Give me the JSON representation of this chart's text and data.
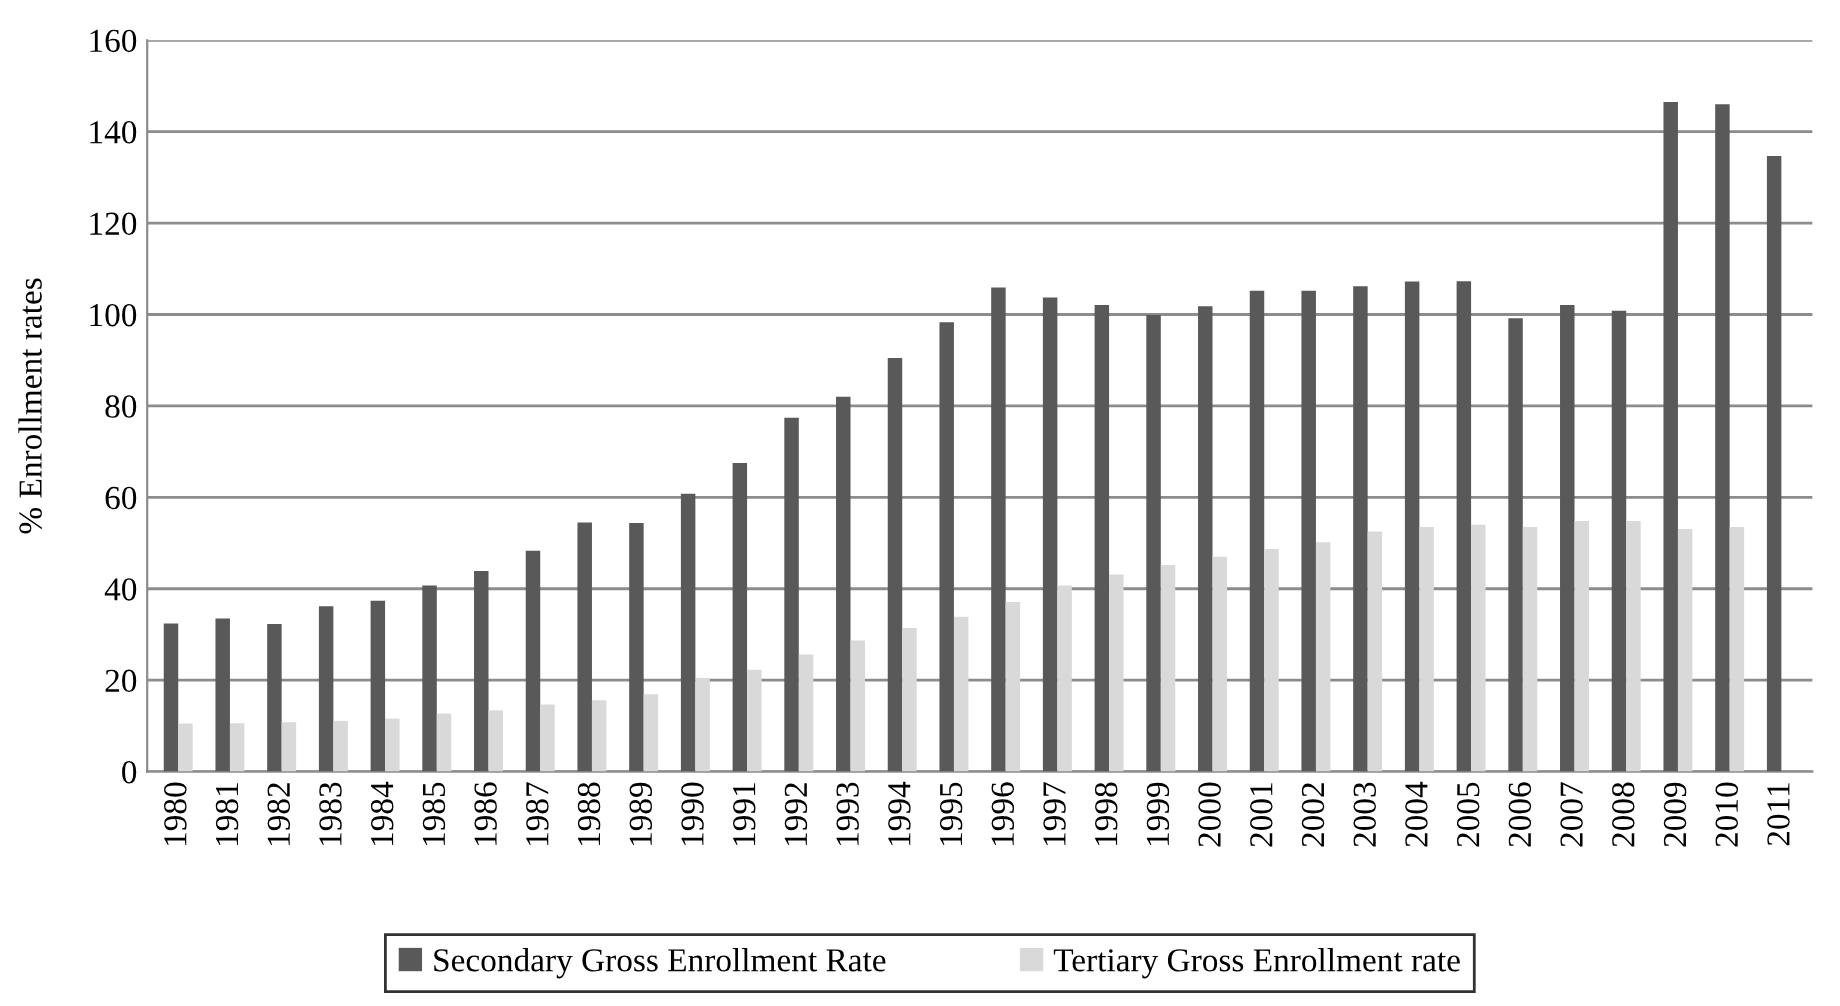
{
  "chart_data": {
    "type": "bar",
    "ylabel": "% Enrollment rates",
    "categories": [
      "1980",
      "1981",
      "1982",
      "1983",
      "1984",
      "1985",
      "1986",
      "1987",
      "1988",
      "1989",
      "1990",
      "1991",
      "1992",
      "1993",
      "1994",
      "1995",
      "1996",
      "1997",
      "1998",
      "1999",
      "2000",
      "2001",
      "2002",
      "2003",
      "2004",
      "2005",
      "2006",
      "2007",
      "2008",
      "2009",
      "2010",
      "2011"
    ],
    "series": [
      {
        "name": "Secondary Gross Enrollment Rate",
        "color": "#595959",
        "values": [
          32.4,
          33.5,
          32.3,
          36.2,
          37.4,
          40.7,
          43.9,
          48.3,
          54.5,
          54.4,
          60.8,
          67.5,
          77.4,
          82.0,
          90.5,
          98.3,
          105.9,
          103.7,
          102.1,
          99.9,
          101.8,
          105.2,
          105.2,
          106.2,
          107.2,
          107.3,
          99.2,
          102.1,
          100.8,
          146.5,
          146.0,
          134.7
        ]
      },
      {
        "name": "Tertiary Gross Enrollment rate",
        "color": "#d9d9d9",
        "values": [
          10.5,
          10.6,
          10.8,
          11.1,
          11.6,
          12.7,
          13.4,
          14.7,
          15.6,
          16.9,
          20.4,
          22.3,
          25.6,
          28.7,
          31.4,
          33.9,
          37.1,
          40.7,
          43.1,
          45.2,
          47.0,
          48.7,
          50.2,
          52.5,
          53.5,
          54.0,
          53.5,
          54.8,
          54.8,
          53.1,
          53.5,
          null
        ]
      }
    ],
    "ylim": [
      0,
      160
    ],
    "yticks": [
      0,
      20,
      40,
      60,
      80,
      100,
      120,
      140,
      160
    ],
    "grid": "y",
    "legend": "bottom"
  }
}
